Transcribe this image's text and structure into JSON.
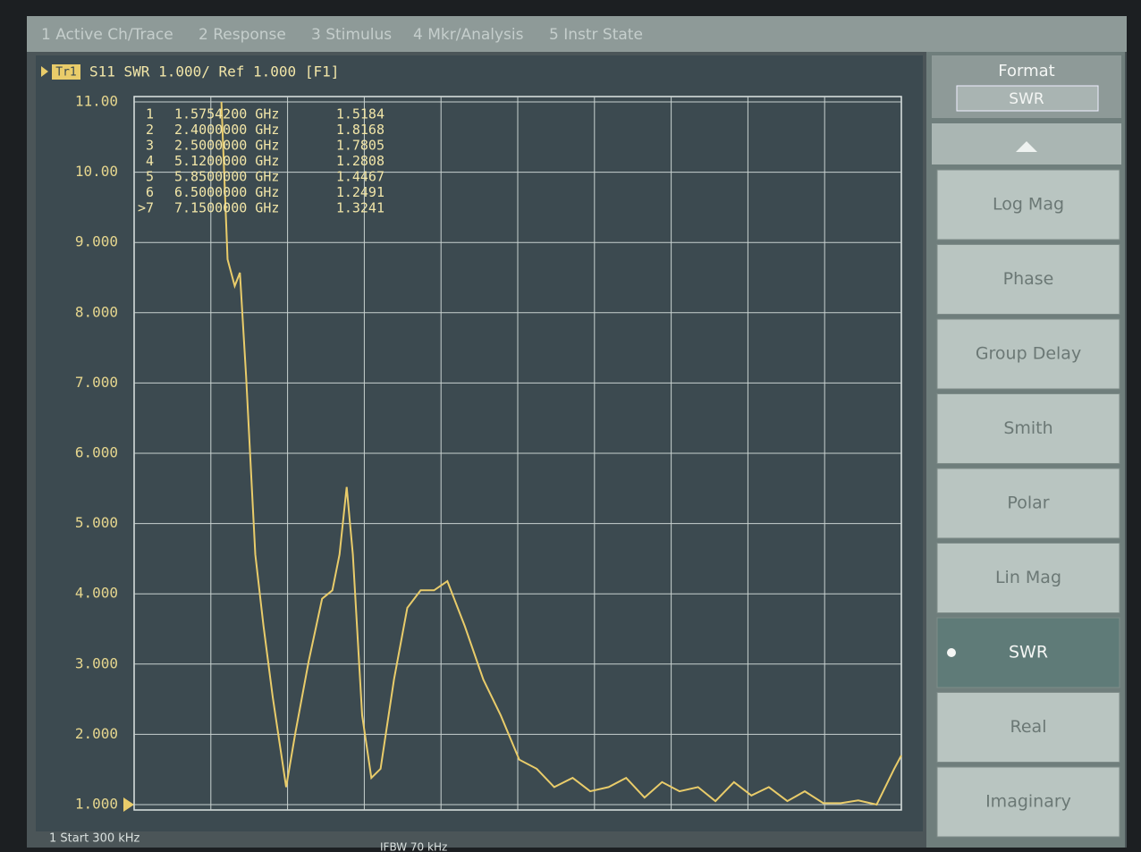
{
  "menu_bar": [
    "1 Active Ch/Trace",
    "2 Response",
    "3 Stimulus",
    "4 Mkr/Analysis",
    "5 Instr State"
  ],
  "chart_data": {
    "type": "line",
    "trace_badge": "Tr1",
    "title": "S11  SWR 1.000/ Ref 1.000 [F1]",
    "color": "#e9cc6a",
    "x": [
      0.85,
      0.91,
      0.98,
      1.03,
      1.09,
      1.18,
      1.26,
      1.35,
      1.48,
      1.57,
      1.7,
      1.83,
      1.93,
      2.0,
      2.07,
      2.13,
      2.22,
      2.31,
      2.4,
      2.53,
      2.66,
      2.79,
      2.92,
      3.05,
      3.22,
      3.4,
      3.57,
      3.75,
      3.92,
      4.09,
      4.27,
      4.44,
      4.62,
      4.79,
      4.97,
      5.14,
      5.31,
      5.49,
      5.66,
      5.84,
      6.01,
      6.18,
      6.36,
      6.53,
      6.71,
      6.88,
      7.05,
      7.23,
      7.4,
      7.47
    ],
    "values": [
      11,
      8.76,
      8.38,
      8.57,
      7.1,
      4.56,
      3.54,
      2.53,
      1.25,
      2.02,
      3.04,
      3.93,
      4.05,
      4.56,
      5.52,
      4.56,
      2.27,
      1.38,
      1.51,
      2.78,
      3.8,
      4.05,
      4.05,
      4.18,
      3.54,
      2.78,
      2.27,
      1.64,
      1.51,
      1.25,
      1.38,
      1.19,
      1.25,
      1.38,
      1.1,
      1.32,
      1.19,
      1.25,
      1.05,
      1.32,
      1.13,
      1.25,
      1.05,
      1.19,
      1.02,
      1.02,
      1.06,
      1.0,
      1.51,
      1.7
    ],
    "xlim": [
      0.0003,
      7.47
    ],
    "ylim": [
      1,
      11
    ],
    "yticks": [
      {
        "value": 1,
        "label": "1.000"
      },
      {
        "value": 2,
        "label": "2.000"
      },
      {
        "value": 3,
        "label": "3.000"
      },
      {
        "value": 4,
        "label": "4.000"
      },
      {
        "value": 5,
        "label": "5.000"
      },
      {
        "value": 6,
        "label": "6.000"
      },
      {
        "value": 7,
        "label": "7.000"
      },
      {
        "value": 8,
        "label": "8.000"
      },
      {
        "value": 9,
        "label": "9.000"
      },
      {
        "value": 10,
        "label": "10.00"
      },
      {
        "value": 11,
        "label": "11.00"
      }
    ],
    "grid": true,
    "markers": [
      {
        "id": "1",
        "frequency": "1.5754200 GHz",
        "value": "1.5184"
      },
      {
        "id": "2",
        "frequency": "2.4000000 GHz",
        "value": "1.8168"
      },
      {
        "id": "3",
        "frequency": "2.5000000 GHz",
        "value": "1.7805"
      },
      {
        "id": "4",
        "frequency": "5.1200000 GHz",
        "value": "1.2808"
      },
      {
        "id": "5",
        "frequency": "5.8500000 GHz",
        "value": "1.4467"
      },
      {
        "id": "6",
        "frequency": "6.5000000 GHz",
        "value": "1.2491"
      },
      {
        "id": ">7",
        "frequency": "7.1500000 GHz",
        "value": "1.3241"
      }
    ]
  },
  "footer": {
    "start": "1  Start 300 kHz",
    "ifbw": "IFBW 70 kHz"
  },
  "softkeys": {
    "title": "Format",
    "current": "SWR",
    "selected": 6,
    "buttons": [
      "Log Mag",
      "Phase",
      "Group Delay",
      "Smith",
      "Polar",
      "Lin Mag",
      "SWR",
      "Real",
      "Imaginary"
    ]
  }
}
